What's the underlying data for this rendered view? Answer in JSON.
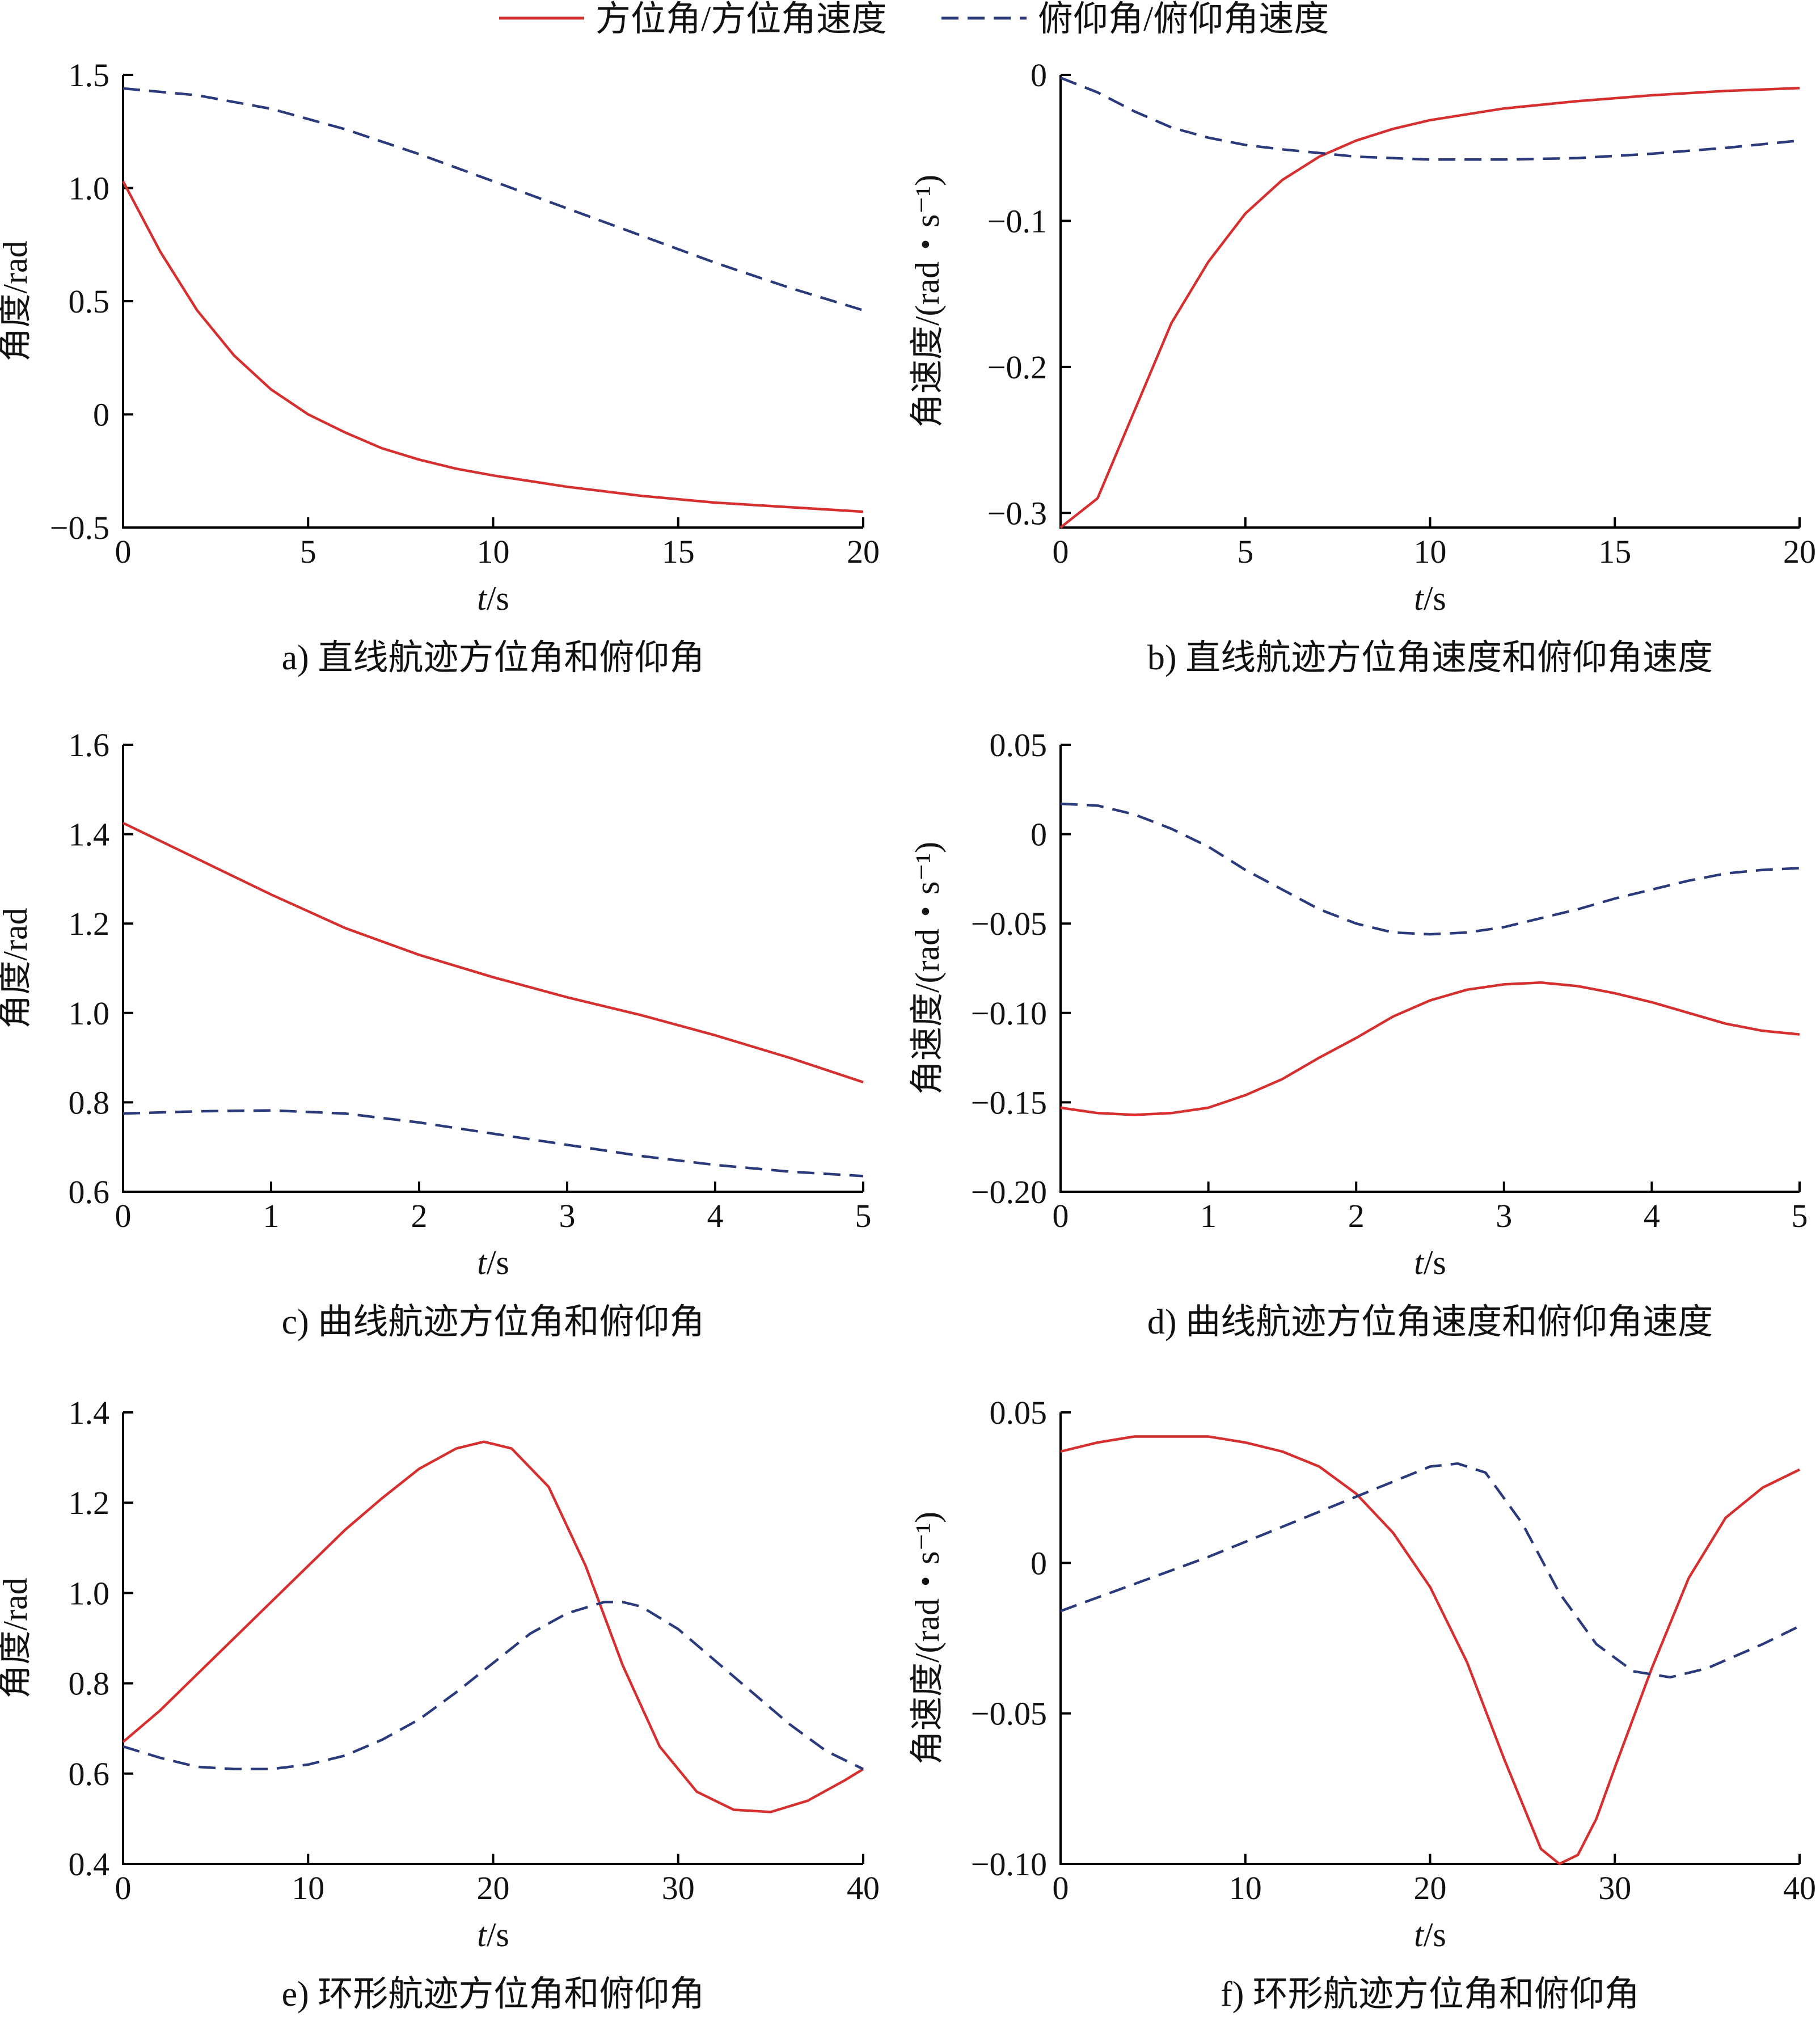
{
  "legend": {
    "items": [
      {
        "label": "方位角/方位角速度",
        "color": "#d62f2f",
        "style": "solid"
      },
      {
        "label": "俯仰角/俯仰角速度",
        "color": "#2a3a7a",
        "style": "dashed"
      }
    ]
  },
  "chart_data": [
    {
      "type": "line",
      "caption": "a) 直线航迹方位角和俯仰角",
      "xlabel_italic": "t",
      "xlabel_unit": "/s",
      "ylabel": "角度/rad",
      "xlim": [
        0,
        20
      ],
      "ylim": [
        -0.5,
        1.5
      ],
      "xticks": [
        0,
        5,
        10,
        15,
        20
      ],
      "yticks": [
        -0.5,
        0,
        0.5,
        1.0,
        1.5
      ],
      "ytick_labels": [
        "−0.5",
        "0",
        "0.5",
        "1.0",
        "1.5"
      ],
      "series": [
        {
          "color": "#d62f2f",
          "style": "solid",
          "x": [
            0,
            1,
            2,
            3,
            4,
            5,
            6,
            7,
            8,
            9,
            10,
            12,
            14,
            16,
            18,
            20
          ],
          "y": [
            1.03,
            0.72,
            0.46,
            0.26,
            0.11,
            0.0,
            -0.08,
            -0.15,
            -0.2,
            -0.24,
            -0.27,
            -0.32,
            -0.36,
            -0.39,
            -0.41,
            -0.43
          ]
        },
        {
          "color": "#2a3a7a",
          "style": "dashed",
          "x": [
            0,
            2,
            4,
            6,
            8,
            10,
            12,
            14,
            16,
            18,
            20
          ],
          "y": [
            1.44,
            1.41,
            1.35,
            1.26,
            1.15,
            1.03,
            0.91,
            0.79,
            0.67,
            0.56,
            0.46
          ]
        }
      ]
    },
    {
      "type": "line",
      "caption": "b) 直线航迹方位角速度和俯仰角速度",
      "xlabel_italic": "t",
      "xlabel_unit": "/s",
      "ylabel": "角速度/(rad・s⁻¹)",
      "xlim": [
        0,
        20
      ],
      "ylim": [
        -0.31,
        0.0
      ],
      "xticks": [
        0,
        5,
        10,
        15,
        20
      ],
      "yticks": [
        -0.3,
        -0.2,
        -0.1,
        0
      ],
      "ytick_labels": [
        "−0.3",
        "−0.2",
        "−0.1",
        "0"
      ],
      "series": [
        {
          "color": "#d62f2f",
          "style": "solid",
          "x": [
            0,
            1,
            2,
            3,
            4,
            5,
            6,
            7,
            8,
            9,
            10,
            12,
            14,
            16,
            18,
            20
          ],
          "y": [
            -0.31,
            -0.29,
            -0.23,
            -0.17,
            -0.128,
            -0.095,
            -0.072,
            -0.056,
            -0.045,
            -0.037,
            -0.031,
            -0.023,
            -0.018,
            -0.014,
            -0.011,
            -0.009
          ]
        },
        {
          "color": "#2a3a7a",
          "style": "dashed",
          "x": [
            0,
            1,
            2,
            3,
            4,
            5,
            6,
            8,
            10,
            12,
            14,
            16,
            18,
            20
          ],
          "y": [
            -0.002,
            -0.012,
            -0.025,
            -0.036,
            -0.043,
            -0.048,
            -0.051,
            -0.056,
            -0.058,
            -0.058,
            -0.057,
            -0.054,
            -0.05,
            -0.045
          ]
        }
      ]
    },
    {
      "type": "line",
      "caption": "c) 曲线航迹方位角和俯仰角",
      "xlabel_italic": "t",
      "xlabel_unit": "/s",
      "ylabel": "角度/rad",
      "xlim": [
        0,
        5
      ],
      "ylim": [
        0.6,
        1.6
      ],
      "xticks": [
        0,
        1,
        2,
        3,
        4,
        5
      ],
      "yticks": [
        0.6,
        0.8,
        1.0,
        1.2,
        1.4,
        1.6
      ],
      "ytick_labels": [
        "0.6",
        "0.8",
        "1.0",
        "1.2",
        "1.4",
        "1.6"
      ],
      "series": [
        {
          "color": "#d62f2f",
          "style": "solid",
          "x": [
            0,
            0.5,
            1,
            1.5,
            2,
            2.5,
            3,
            3.5,
            4,
            4.5,
            5
          ],
          "y": [
            1.425,
            1.345,
            1.265,
            1.19,
            1.13,
            1.08,
            1.035,
            0.995,
            0.95,
            0.9,
            0.845
          ]
        },
        {
          "color": "#2a3a7a",
          "style": "dashed",
          "x": [
            0,
            0.5,
            1,
            1.5,
            2,
            2.5,
            3,
            3.5,
            4,
            4.5,
            5
          ],
          "y": [
            0.775,
            0.78,
            0.782,
            0.775,
            0.755,
            0.73,
            0.705,
            0.68,
            0.66,
            0.645,
            0.635
          ]
        }
      ]
    },
    {
      "type": "line",
      "caption": "d) 曲线航迹方位角速度和俯仰角速度",
      "xlabel_italic": "t",
      "xlabel_unit": "/s",
      "ylabel": "角速度/(rad・s⁻¹)",
      "xlim": [
        0,
        5
      ],
      "ylim": [
        -0.2,
        0.05
      ],
      "xticks": [
        0,
        1,
        2,
        3,
        4,
        5
      ],
      "yticks": [
        -0.2,
        -0.15,
        -0.1,
        -0.05,
        0,
        0.05
      ],
      "ytick_labels": [
        "−0.20",
        "−0.15",
        "−0.10",
        "−0.05",
        "0",
        "0.05"
      ],
      "series": [
        {
          "color": "#d62f2f",
          "style": "solid",
          "x": [
            0,
            0.25,
            0.5,
            0.75,
            1,
            1.25,
            1.5,
            1.75,
            2,
            2.25,
            2.5,
            2.75,
            3,
            3.25,
            3.5,
            3.75,
            4,
            4.25,
            4.5,
            4.75,
            5
          ],
          "y": [
            -0.153,
            -0.156,
            -0.157,
            -0.156,
            -0.153,
            -0.146,
            -0.137,
            -0.125,
            -0.114,
            -0.102,
            -0.093,
            -0.087,
            -0.084,
            -0.083,
            -0.085,
            -0.089,
            -0.094,
            -0.1,
            -0.106,
            -0.11,
            -0.112
          ]
        },
        {
          "color": "#2a3a7a",
          "style": "dashed",
          "x": [
            0,
            0.25,
            0.5,
            0.75,
            1,
            1.25,
            1.5,
            1.75,
            2,
            2.25,
            2.5,
            2.75,
            3,
            3.25,
            3.5,
            3.75,
            4,
            4.25,
            4.5,
            4.75,
            5
          ],
          "y": [
            0.017,
            0.016,
            0.011,
            0.003,
            -0.007,
            -0.02,
            -0.031,
            -0.042,
            -0.05,
            -0.055,
            -0.056,
            -0.055,
            -0.052,
            -0.047,
            -0.042,
            -0.036,
            -0.031,
            -0.026,
            -0.022,
            -0.02,
            -0.019
          ]
        }
      ]
    },
    {
      "type": "line",
      "caption": "e) 环形航迹方位角和俯仰角",
      "xlabel_italic": "t",
      "xlabel_unit": "/s",
      "ylabel": "角度/rad",
      "xlim": [
        0,
        40
      ],
      "ylim": [
        0.4,
        1.4
      ],
      "xticks": [
        0,
        10,
        20,
        30,
        40
      ],
      "yticks": [
        0.4,
        0.6,
        0.8,
        1.0,
        1.2,
        1.4
      ],
      "ytick_labels": [
        "0.4",
        "0.6",
        "0.8",
        "1.0",
        "1.2",
        "1.4"
      ],
      "series": [
        {
          "color": "#d62f2f",
          "style": "solid",
          "x": [
            0,
            2,
            4,
            6,
            8,
            10,
            12,
            14,
            16,
            18,
            19.5,
            21,
            23,
            25,
            27,
            29,
            31,
            33,
            35,
            37,
            39,
            40
          ],
          "y": [
            0.67,
            0.74,
            0.82,
            0.9,
            0.98,
            1.06,
            1.14,
            1.21,
            1.275,
            1.32,
            1.335,
            1.32,
            1.235,
            1.06,
            0.84,
            0.66,
            0.56,
            0.52,
            0.515,
            0.54,
            0.585,
            0.61
          ]
        },
        {
          "color": "#2a3a7a",
          "style": "dashed",
          "x": [
            0,
            2,
            4,
            6,
            8,
            10,
            12,
            14,
            16,
            18,
            20,
            22,
            24,
            26,
            27,
            28,
            30,
            32,
            34,
            36,
            38,
            40
          ],
          "y": [
            0.66,
            0.635,
            0.615,
            0.61,
            0.61,
            0.62,
            0.64,
            0.675,
            0.72,
            0.78,
            0.845,
            0.91,
            0.955,
            0.98,
            0.98,
            0.97,
            0.92,
            0.85,
            0.78,
            0.71,
            0.65,
            0.61
          ]
        }
      ]
    },
    {
      "type": "line",
      "caption": "f) 环形航迹方位角和俯仰角",
      "xlabel_italic": "t",
      "xlabel_unit": "/s",
      "ylabel": "角速度/(rad・s⁻¹)",
      "xlim": [
        0,
        40
      ],
      "ylim": [
        -0.1,
        0.05
      ],
      "xticks": [
        0,
        10,
        20,
        30,
        40
      ],
      "yticks": [
        -0.1,
        -0.05,
        0,
        0.05
      ],
      "ytick_labels": [
        "−0.10",
        "−0.05",
        "0",
        "0.05"
      ],
      "series": [
        {
          "color": "#d62f2f",
          "style": "solid",
          "x": [
            0,
            2,
            4,
            6,
            8,
            10,
            12,
            14,
            16,
            18,
            20,
            22,
            24,
            26,
            27,
            28,
            29,
            30,
            32,
            34,
            36,
            38,
            40
          ],
          "y": [
            0.037,
            0.04,
            0.042,
            0.042,
            0.042,
            0.04,
            0.037,
            0.032,
            0.023,
            0.01,
            -0.008,
            -0.033,
            -0.065,
            -0.095,
            -0.1,
            -0.097,
            -0.085,
            -0.068,
            -0.035,
            -0.005,
            0.015,
            0.025,
            0.031
          ]
        },
        {
          "color": "#2a3a7a",
          "style": "dashed",
          "x": [
            0,
            4,
            8,
            12,
            16,
            20,
            21.5,
            23,
            25,
            27,
            29,
            31,
            33,
            35,
            38,
            40
          ],
          "y": [
            -0.016,
            -0.007,
            0.002,
            0.012,
            0.022,
            0.032,
            0.033,
            0.03,
            0.013,
            -0.01,
            -0.027,
            -0.036,
            -0.038,
            -0.035,
            -0.027,
            -0.021
          ]
        }
      ]
    }
  ]
}
